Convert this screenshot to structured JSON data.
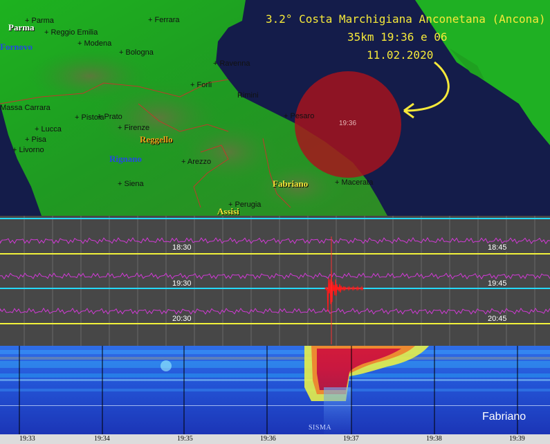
{
  "event": {
    "title_line1": "3.2° Costa Marchigiana Anconetana (Ancona)",
    "title_line2": "35km 19:36 e 06",
    "title_line3": "11.02.2020",
    "circle_label": "19:36"
  },
  "map": {
    "regions": {
      "parma": "Parma",
      "fornovo": "Fornovo",
      "reggello": "Reggello",
      "rignano": "Rignano",
      "fabriano": "Fabriano",
      "assisi": "Assisi"
    },
    "cities": {
      "parma": "+ Parma",
      "reggio_emilia": "+ Reggio Emilia",
      "ferrara": "+ Ferrara",
      "modena": "+ Modena",
      "bologna": "+ Bologna",
      "ravenna": "+ Ravenna",
      "forli": "+ Forlì",
      "rimini": "Rimini",
      "massa_carrara": "Massa Carrara",
      "pistoia": "+ Pistoia",
      "prato": "+ Prato",
      "lucca": "+ Lucca",
      "firenze": "+ Firenze",
      "pisa": "+ Pisa",
      "livorno": "+ Livorno",
      "pesaro": "+ Pesaro",
      "arezzo": "+ Arezzo",
      "siena": "+ Siena",
      "macerata": "+ Macerata",
      "perugia": "+ Perugia"
    },
    "colors": {
      "sea": "#141c4a",
      "land": "#1fa524",
      "coast_text": "#f6e93a"
    }
  },
  "seismograph": {
    "time_labels_left": [
      "18:30",
      "19:30",
      "20:30"
    ],
    "time_labels_right": [
      "18:45",
      "19:45",
      "20:45"
    ]
  },
  "spectrogram": {
    "station": "Fabriano",
    "event_label": "SISMA",
    "x_ticks": [
      "19:33",
      "19:34",
      "19:35",
      "19:36",
      "19:37",
      "19:38",
      "19:39"
    ]
  }
}
